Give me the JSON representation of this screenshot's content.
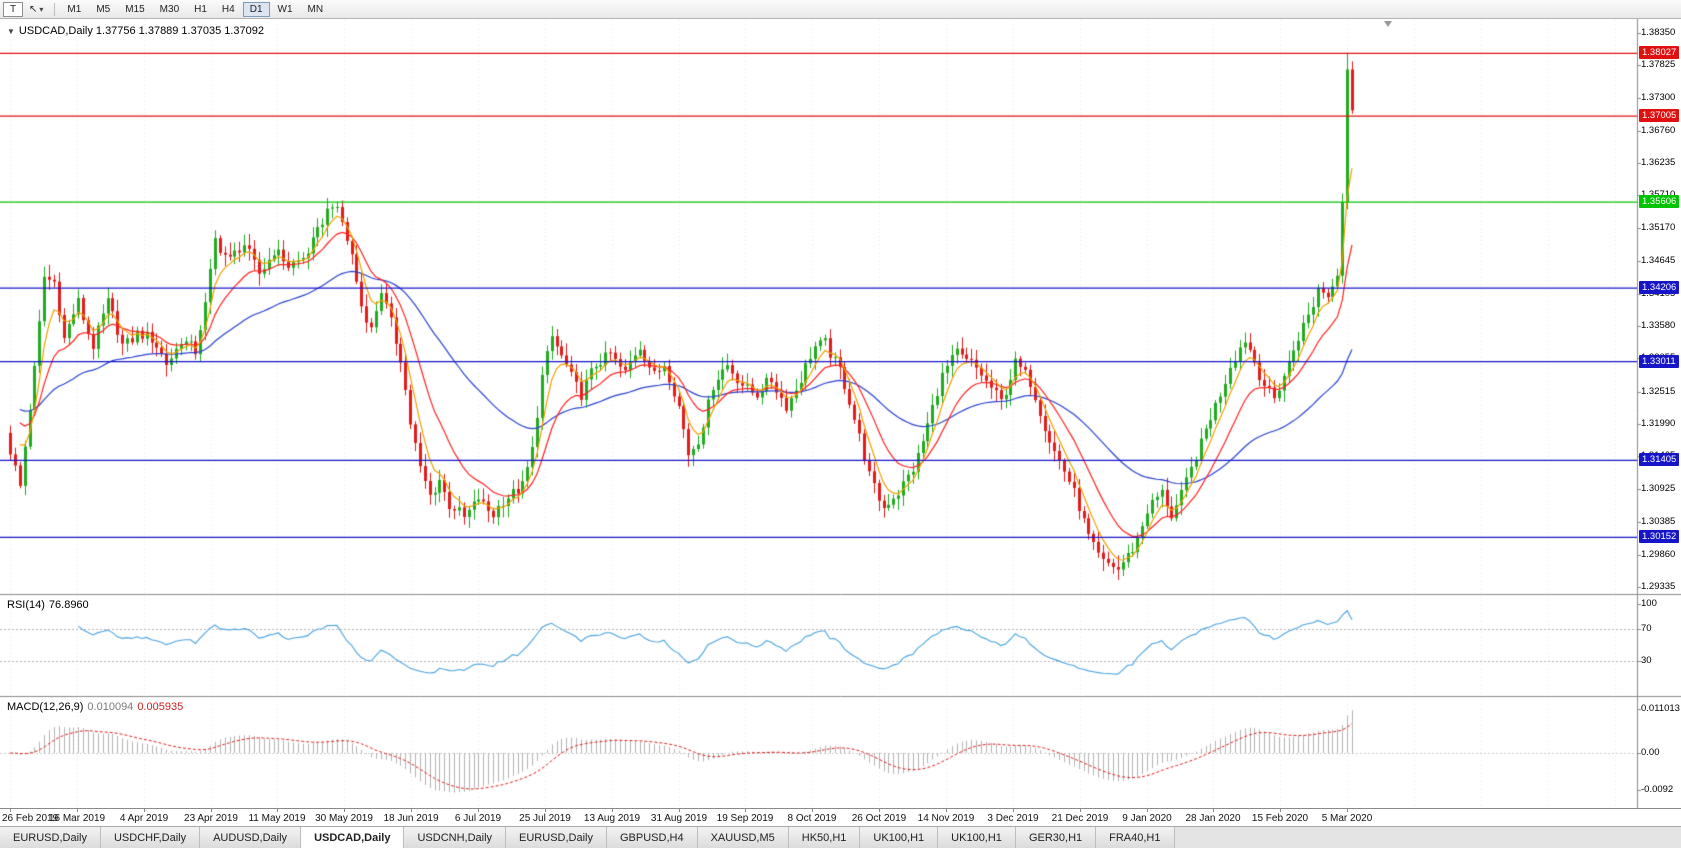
{
  "toolbar": {
    "chart_button_label": "T",
    "pointer_icon": "↖",
    "dropdown_icon": "▾"
  },
  "timeframes": {
    "items": [
      "M1",
      "M5",
      "M15",
      "M30",
      "H1",
      "H4",
      "D1",
      "W1",
      "MN"
    ],
    "active": "D1"
  },
  "chart_header": {
    "collapse_icon": "▼",
    "symbol": "USDCAD,Daily",
    "open": "1.37756",
    "high": "1.37889",
    "low": "1.37035",
    "close": "1.37092"
  },
  "rsi": {
    "label": "RSI(14)",
    "value": "76.8960",
    "ticks": [
      "100",
      "70",
      "30"
    ],
    "levels": [
      70,
      30
    ],
    "color": "#4aa3df"
  },
  "macd": {
    "label": "MACD(12,26,9)",
    "value_main": "0.010094",
    "value_signal": "0.005935",
    "ticks": [
      "0.011013",
      "0.00",
      "-0.0092"
    ]
  },
  "tabs": [
    {
      "label": "EURUSD,Daily"
    },
    {
      "label": "USDCHF,Daily"
    },
    {
      "label": "AUDUSD,Daily"
    },
    {
      "label": "USDCAD,Daily",
      "active": true
    },
    {
      "label": "USDCNH,Daily"
    },
    {
      "label": "EURUSD,Daily"
    },
    {
      "label": "GBPUSD,H4"
    },
    {
      "label": "XAUUSD,M5"
    },
    {
      "label": "HK50,H1"
    },
    {
      "label": "UK100,H1"
    },
    {
      "label": "UK100,H1"
    },
    {
      "label": "GER30,H1"
    },
    {
      "label": "FRA40,H1"
    }
  ],
  "colors": {
    "candle_up": "#22ab22",
    "candle_down": "#e31b1b",
    "ma_fast": "#f0a000",
    "ma_mid": "#ff2222",
    "ma_slow": "#2b43cf",
    "rsi_line": "#4aa3df",
    "macd_histogram": "#b3b3b3",
    "macd_signal": "#dd2020",
    "level_red": "#e01010",
    "level_green": "#00c400",
    "level_blue": "#1616c8"
  },
  "chart_data": {
    "type": "candlestick",
    "title": "USDCAD,Daily",
    "y_axis_ticks": [
      "1.38350",
      "1.37825",
      "1.37300",
      "1.36760",
      "1.36235",
      "1.35710",
      "1.35170",
      "1.34645",
      "1.34105",
      "1.33580",
      "1.33055",
      "1.32515",
      "1.31990",
      "1.31465",
      "1.30925",
      "1.30385",
      "1.29860",
      "1.29335"
    ],
    "x_axis_labels": [
      "26 Feb 2019",
      "16 Mar 2019",
      "4 Apr 2019",
      "23 Apr 2019",
      "11 May 2019",
      "30 May 2019",
      "18 Jun 2019",
      "6 Jul 2019",
      "25 Jul 2019",
      "13 Aug 2019",
      "31 Aug 2019",
      "19 Sep 2019",
      "8 Oct 2019",
      "26 Oct 2019",
      "14 Nov 2019",
      "3 Dec 2019",
      "21 Dec 2019",
      "9 Jan 2020",
      "28 Jan 2020",
      "15 Feb 2020",
      "5 Mar 2020"
    ],
    "price_range": {
      "top": 1.3835,
      "bottom": 1.29335
    },
    "candle_count": 276,
    "close_anchors": [
      [
        0,
        1.3155
      ],
      [
        2,
        1.309
      ],
      [
        5,
        1.329
      ],
      [
        7,
        1.3445
      ],
      [
        9,
        1.343
      ],
      [
        11,
        1.333
      ],
      [
        14,
        1.34
      ],
      [
        17,
        1.333
      ],
      [
        20,
        1.339
      ],
      [
        23,
        1.333
      ],
      [
        26,
        1.335
      ],
      [
        29,
        1.333
      ],
      [
        32,
        1.33
      ],
      [
        35,
        1.334
      ],
      [
        38,
        1.331
      ],
      [
        40,
        1.339
      ],
      [
        42,
        1.3505
      ],
      [
        45,
        1.3465
      ],
      [
        48,
        1.3485
      ],
      [
        51,
        1.345
      ],
      [
        54,
        1.348
      ],
      [
        57,
        1.345
      ],
      [
        60,
        1.3475
      ],
      [
        63,
        1.351
      ],
      [
        66,
        1.3553
      ],
      [
        68,
        1.353
      ],
      [
        70,
        1.348
      ],
      [
        72,
        1.339
      ],
      [
        74,
        1.3345
      ],
      [
        76,
        1.3415
      ],
      [
        78,
        1.337
      ],
      [
        80,
        1.331
      ],
      [
        82,
        1.3195
      ],
      [
        84,
        1.312
      ],
      [
        86,
        1.3085
      ],
      [
        88,
        1.3115
      ],
      [
        90,
        1.3065
      ],
      [
        93,
        1.304
      ],
      [
        96,
        1.3085
      ],
      [
        99,
        1.305
      ],
      [
        102,
        1.3075
      ],
      [
        105,
        1.3105
      ],
      [
        107,
        1.316
      ],
      [
        109,
        1.327
      ],
      [
        111,
        1.3335
      ],
      [
        114,
        1.33
      ],
      [
        117,
        1.3245
      ],
      [
        120,
        1.329
      ],
      [
        123,
        1.332
      ],
      [
        126,
        1.328
      ],
      [
        129,
        1.332
      ],
      [
        132,
        1.3285
      ],
      [
        134,
        1.33
      ],
      [
        137,
        1.322
      ],
      [
        139,
        1.315
      ],
      [
        141,
        1.318
      ],
      [
        144,
        1.326
      ],
      [
        147,
        1.329
      ],
      [
        150,
        1.327
      ],
      [
        153,
        1.3245
      ],
      [
        156,
        1.3265
      ],
      [
        159,
        1.3235
      ],
      [
        162,
        1.327
      ],
      [
        165,
        1.332
      ],
      [
        167,
        1.3335
      ],
      [
        170,
        1.329
      ],
      [
        173,
        1.32
      ],
      [
        176,
        1.312
      ],
      [
        179,
        1.3065
      ],
      [
        182,
        1.308
      ],
      [
        185,
        1.313
      ],
      [
        188,
        1.32
      ],
      [
        191,
        1.327
      ],
      [
        194,
        1.332
      ],
      [
        197,
        1.33
      ],
      [
        200,
        1.326
      ],
      [
        203,
        1.324
      ],
      [
        206,
        1.33
      ],
      [
        209,
        1.326
      ],
      [
        212,
        1.32
      ],
      [
        215,
        1.314
      ],
      [
        218,
        1.308
      ],
      [
        221,
        1.302
      ],
      [
        224,
        1.2975
      ],
      [
        227,
        1.2955
      ],
      [
        230,
        1.3
      ],
      [
        233,
        1.306
      ],
      [
        236,
        1.308
      ],
      [
        238,
        1.305
      ],
      [
        241,
        1.311
      ],
      [
        244,
        1.316
      ],
      [
        247,
        1.323
      ],
      [
        250,
        1.33
      ],
      [
        253,
        1.333
      ],
      [
        256,
        1.328
      ],
      [
        259,
        1.3245
      ],
      [
        262,
        1.329
      ],
      [
        265,
        1.336
      ],
      [
        268,
        1.342
      ],
      [
        270,
        1.3405
      ],
      [
        272,
        1.344
      ],
      [
        273,
        1.356
      ],
      [
        274,
        1.37756
      ],
      [
        275,
        1.37092
      ]
    ],
    "last_bar": {
      "open": 1.37756,
      "high": 1.37889,
      "low": 1.37035,
      "close": 1.37092
    },
    "spike_high": 1.38027,
    "horizontal_lines": [
      {
        "label": "1.38027",
        "value": 1.38027,
        "color": "#e01010"
      },
      {
        "label": "1.37005",
        "value": 1.37005,
        "color": "#e01010"
      },
      {
        "label": "1.35606",
        "value": 1.35606,
        "color": "#00c400"
      },
      {
        "label": "1.34206",
        "value": 1.34206,
        "color": "#1616c8"
      },
      {
        "label": "1.33011",
        "value": 1.33011,
        "color": "#1616c8"
      },
      {
        "label": "1.31405",
        "value": 1.31405,
        "color": "#1616c8"
      },
      {
        "label": "1.30152",
        "value": 1.30152,
        "color": "#1616c8"
      }
    ],
    "moving_averages": [
      {
        "period": 5,
        "color": "#f0a000"
      },
      {
        "period": 13,
        "color": "#ff2222"
      },
      {
        "period": 45,
        "color": "#2b43cf"
      }
    ],
    "indicators": {
      "rsi": {
        "period": 14,
        "last": 76.896
      },
      "macd": {
        "fast": 12,
        "slow": 26,
        "signal": 9,
        "last_main": 0.010094,
        "last_signal": 0.005935
      }
    }
  }
}
